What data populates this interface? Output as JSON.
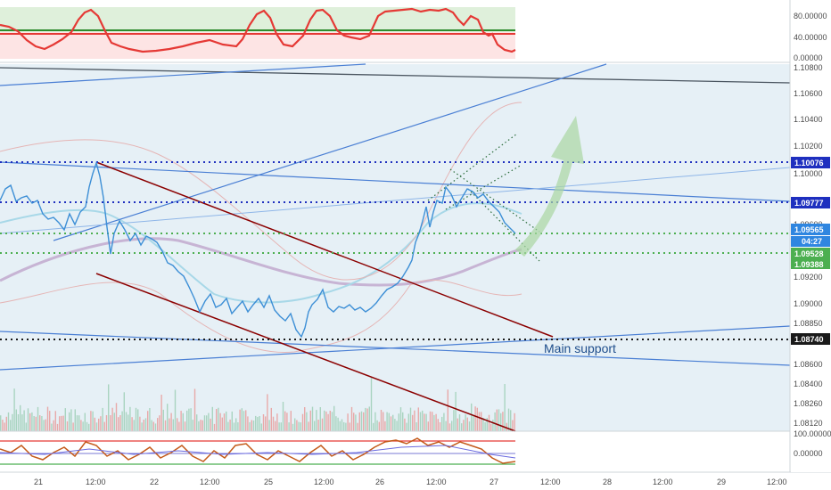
{
  "colors": {
    "chart_bg": "#e6f0f6",
    "price_line": "#3d8fd6",
    "support_green": "#4caf50",
    "resistance_blue": "#1e2fbf",
    "channel_red": "#8b0000",
    "trend_blue": "#4a7fd4",
    "rsi_green": "#2e8b2e",
    "rsi_red": "#e53935",
    "arrow_green": "#a9d6a3"
  },
  "top_indicator": {
    "axis_labels": [
      "80.00000",
      "40.00000",
      "0.00000"
    ]
  },
  "price_axis": {
    "labels": [
      "1.10800",
      "1.10600",
      "1.10400",
      "1.10200",
      "1.10000",
      "1.09800",
      "1.09600",
      "1.09400",
      "1.09200",
      "1.09000",
      "1.08850",
      "1.08600",
      "1.08400",
      "1.08260",
      "1.08120"
    ]
  },
  "price_tags": {
    "level_1": "1.10076",
    "level_2": "1.09777",
    "current": "1.09565",
    "countdown": "04:27",
    "level_3": "1.09528",
    "level_4": "1.09388",
    "level_5": "1.08740"
  },
  "annotation": {
    "main_support": "Main support"
  },
  "bottom_indicator": {
    "axis_labels": [
      "100.00000",
      "0.00000"
    ]
  },
  "time_axis": {
    "labels": [
      "21",
      "12:00",
      "22",
      "12:00",
      "25",
      "12:00",
      "26",
      "12:00",
      "27",
      "12:00",
      "28",
      "12:00",
      "29",
      "12:00"
    ]
  },
  "chart_data": {
    "type": "line",
    "instrument_hint": "price chart with volume, indicator panes and trendlines",
    "horizontal_levels": [
      1.10076,
      1.09777,
      1.09565,
      1.09528,
      1.09388,
      1.0874
    ],
    "price_range": [
      1.0812,
      1.108
    ],
    "price_series_approx": [
      {
        "x": "21",
        "y": 1.0972
      },
      {
        "x": "21 12:00",
        "y": 1.0958
      },
      {
        "x": "21 18:00",
        "y": 1.1008
      },
      {
        "x": "22",
        "y": 1.0955
      },
      {
        "x": "22 12:00",
        "y": 1.0925
      },
      {
        "x": "25",
        "y": 1.089
      },
      {
        "x": "25 12:00",
        "y": 1.0878
      },
      {
        "x": "26",
        "y": 1.09
      },
      {
        "x": "26 06:00",
        "y": 1.0918
      },
      {
        "x": "26 12:00",
        "y": 1.097
      },
      {
        "x": "26 18:00",
        "y": 1.099
      },
      {
        "x": "27",
        "y": 1.098
      },
      {
        "x": "27 06:00",
        "y": 1.09565
      }
    ]
  }
}
